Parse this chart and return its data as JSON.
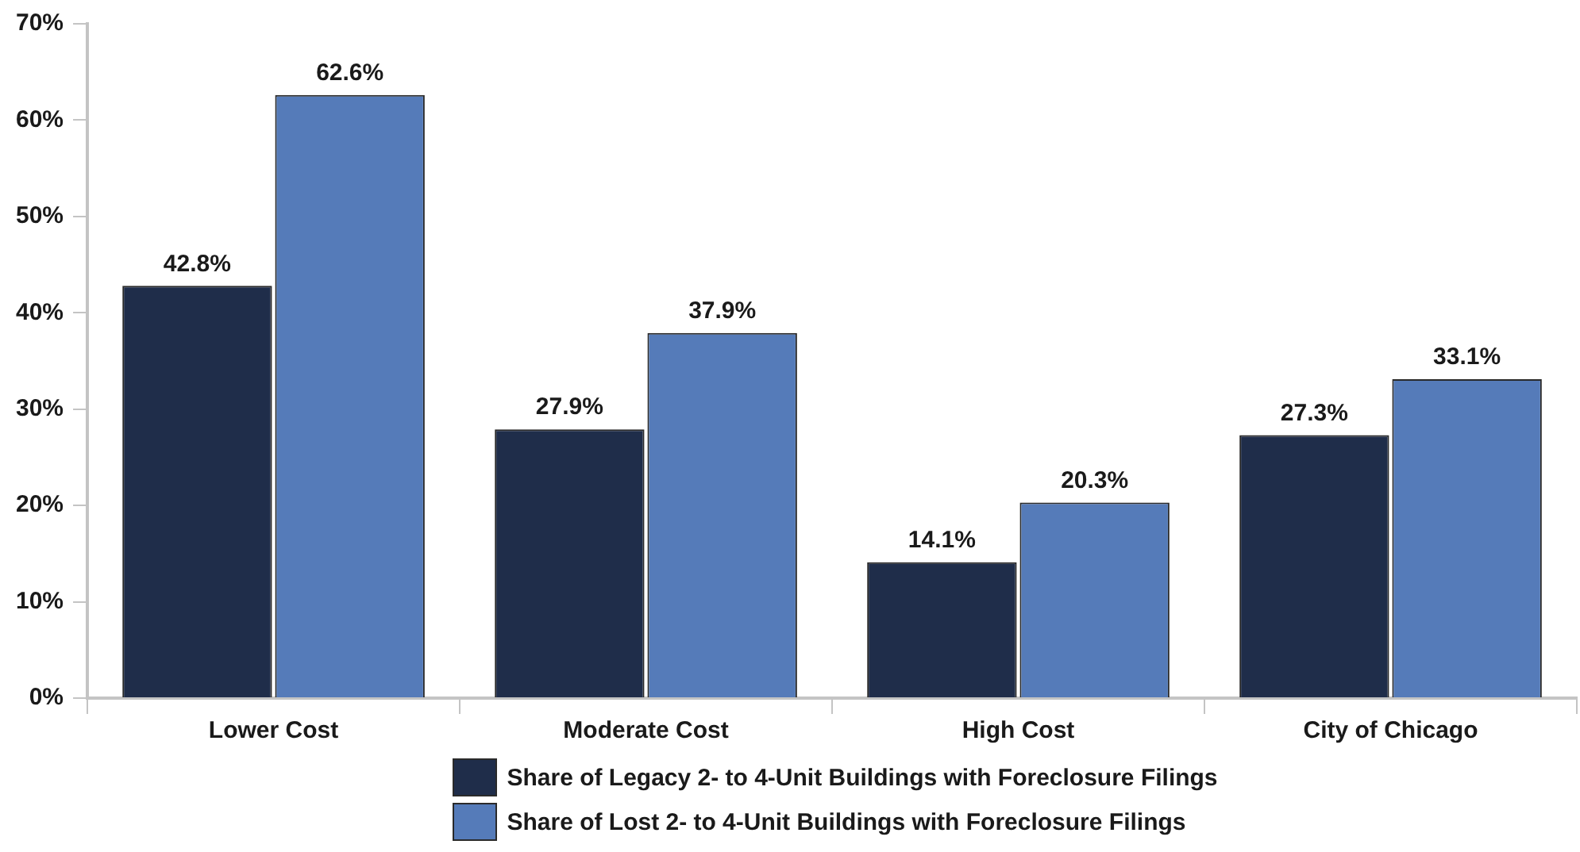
{
  "chart_data": {
    "type": "bar",
    "categories": [
      "Lower Cost",
      "Moderate Cost",
      "High Cost",
      "City of Chicago"
    ],
    "series": [
      {
        "name": "Share of Legacy 2- to 4-Unit Buildings with Foreclosure Filings",
        "color": "#1f2d4a",
        "values": [
          42.8,
          27.9,
          14.1,
          27.3
        ],
        "value_labels": [
          "42.8%",
          "27.9%",
          "14.1%",
          "27.3%"
        ]
      },
      {
        "name": "Share of Lost 2- to 4-Unit Buildings with Foreclosure Filings",
        "color": "#557bb9",
        "values": [
          62.6,
          37.9,
          20.3,
          33.1
        ],
        "value_labels": [
          "62.6%",
          "37.9%",
          "20.3%",
          "33.1%"
        ]
      }
    ],
    "ylim": [
      0,
      70
    ],
    "yticks": [
      {
        "value": 0,
        "label": "0%"
      },
      {
        "value": 10,
        "label": "10%"
      },
      {
        "value": 20,
        "label": "20%"
      },
      {
        "value": 30,
        "label": "30%"
      },
      {
        "value": 40,
        "label": "40%"
      },
      {
        "value": 50,
        "label": "50%"
      },
      {
        "value": 60,
        "label": "60%"
      },
      {
        "value": 70,
        "label": "70%"
      }
    ],
    "grid": false,
    "legend": "bottom"
  }
}
